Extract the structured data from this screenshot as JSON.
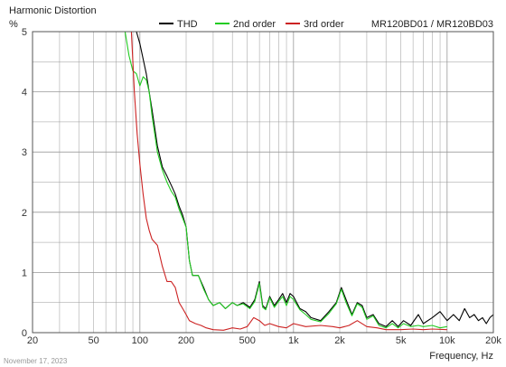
{
  "chart_data": {
    "type": "line",
    "title": "Harmonic Distortion",
    "ylabel": "%",
    "xlabel": "Frequency, Hz",
    "subtitle": "MR120BD01 / MR120BD03",
    "date": "November 17, 2023",
    "x_scale": "log",
    "xlim": [
      20,
      20000
    ],
    "ylim": [
      0,
      5
    ],
    "x_ticks": [
      20,
      50,
      100,
      200,
      500,
      1000,
      2000,
      5000,
      10000,
      20000
    ],
    "x_tick_labels": [
      "20",
      "50",
      "100",
      "200",
      "500",
      "1k",
      "2k",
      "5k",
      "10k",
      "20k"
    ],
    "y_ticks": [
      0,
      1,
      2,
      3,
      4,
      5
    ],
    "y_tick_labels": [
      "0",
      "1",
      "2",
      "3",
      "4",
      "5"
    ],
    "grid": true,
    "legend_placement": "top",
    "series": [
      {
        "name": "THD",
        "color": "#000000",
        "points": [
          [
            88,
            5.0
          ],
          [
            95,
            5.0
          ],
          [
            100,
            4.8
          ],
          [
            110,
            4.3
          ],
          [
            120,
            3.7
          ],
          [
            130,
            3.1
          ],
          [
            140,
            2.75
          ],
          [
            150,
            2.6
          ],
          [
            160,
            2.45
          ],
          [
            170,
            2.3
          ],
          [
            180,
            2.1
          ],
          [
            190,
            1.95
          ],
          [
            200,
            1.75
          ],
          [
            210,
            1.2
          ],
          [
            220,
            0.95
          ],
          [
            240,
            0.95
          ],
          [
            260,
            0.75
          ],
          [
            280,
            0.55
          ],
          [
            300,
            0.45
          ],
          [
            330,
            0.5
          ],
          [
            360,
            0.4
          ],
          [
            400,
            0.5
          ],
          [
            430,
            0.45
          ],
          [
            470,
            0.5
          ],
          [
            520,
            0.42
          ],
          [
            560,
            0.55
          ],
          [
            600,
            0.85
          ],
          [
            630,
            0.45
          ],
          [
            660,
            0.4
          ],
          [
            700,
            0.6
          ],
          [
            750,
            0.45
          ],
          [
            800,
            0.55
          ],
          [
            850,
            0.65
          ],
          [
            900,
            0.5
          ],
          [
            950,
            0.65
          ],
          [
            1000,
            0.6
          ],
          [
            1100,
            0.4
          ],
          [
            1200,
            0.35
          ],
          [
            1300,
            0.25
          ],
          [
            1500,
            0.2
          ],
          [
            1700,
            0.35
          ],
          [
            1900,
            0.5
          ],
          [
            2050,
            0.75
          ],
          [
            2200,
            0.55
          ],
          [
            2400,
            0.3
          ],
          [
            2600,
            0.5
          ],
          [
            2800,
            0.45
          ],
          [
            3000,
            0.25
          ],
          [
            3300,
            0.3
          ],
          [
            3600,
            0.15
          ],
          [
            4000,
            0.1
          ],
          [
            4400,
            0.2
          ],
          [
            4800,
            0.1
          ],
          [
            5200,
            0.2
          ],
          [
            5800,
            0.12
          ],
          [
            6500,
            0.3
          ],
          [
            7000,
            0.15
          ],
          [
            8000,
            0.25
          ],
          [
            9000,
            0.35
          ],
          [
            10000,
            0.2
          ],
          [
            11000,
            0.3
          ],
          [
            12000,
            0.2
          ],
          [
            13000,
            0.4
          ],
          [
            14000,
            0.25
          ],
          [
            15000,
            0.3
          ],
          [
            16000,
            0.2
          ],
          [
            17000,
            0.25
          ],
          [
            18000,
            0.15
          ],
          [
            19000,
            0.25
          ],
          [
            20000,
            0.3
          ]
        ]
      },
      {
        "name": "2nd order",
        "color": "#22cc22",
        "points": [
          [
            80,
            5.0
          ],
          [
            85,
            4.6
          ],
          [
            90,
            4.35
          ],
          [
            95,
            4.3
          ],
          [
            100,
            4.1
          ],
          [
            105,
            4.25
          ],
          [
            110,
            4.2
          ],
          [
            115,
            4.0
          ],
          [
            120,
            3.6
          ],
          [
            130,
            3.0
          ],
          [
            140,
            2.7
          ],
          [
            150,
            2.5
          ],
          [
            160,
            2.35
          ],
          [
            170,
            2.25
          ],
          [
            180,
            2.05
          ],
          [
            190,
            1.9
          ],
          [
            200,
            1.75
          ],
          [
            210,
            1.2
          ],
          [
            220,
            0.95
          ],
          [
            240,
            0.95
          ],
          [
            260,
            0.72
          ],
          [
            280,
            0.55
          ],
          [
            300,
            0.45
          ],
          [
            330,
            0.5
          ],
          [
            360,
            0.4
          ],
          [
            400,
            0.5
          ],
          [
            430,
            0.45
          ],
          [
            470,
            0.48
          ],
          [
            520,
            0.4
          ],
          [
            560,
            0.52
          ],
          [
            600,
            0.82
          ],
          [
            630,
            0.42
          ],
          [
            660,
            0.38
          ],
          [
            700,
            0.58
          ],
          [
            750,
            0.42
          ],
          [
            800,
            0.52
          ],
          [
            850,
            0.6
          ],
          [
            900,
            0.45
          ],
          [
            950,
            0.6
          ],
          [
            1000,
            0.55
          ],
          [
            1100,
            0.38
          ],
          [
            1200,
            0.3
          ],
          [
            1300,
            0.22
          ],
          [
            1500,
            0.18
          ],
          [
            1700,
            0.32
          ],
          [
            1900,
            0.48
          ],
          [
            2050,
            0.72
          ],
          [
            2200,
            0.5
          ],
          [
            2400,
            0.28
          ],
          [
            2600,
            0.48
          ],
          [
            2800,
            0.42
          ],
          [
            3000,
            0.22
          ],
          [
            3300,
            0.28
          ],
          [
            3600,
            0.12
          ],
          [
            4000,
            0.08
          ],
          [
            4400,
            0.15
          ],
          [
            4800,
            0.08
          ],
          [
            5200,
            0.15
          ],
          [
            5800,
            0.1
          ],
          [
            6500,
            0.12
          ],
          [
            7000,
            0.1
          ],
          [
            8000,
            0.12
          ],
          [
            9000,
            0.08
          ],
          [
            10000,
            0.1
          ]
        ]
      },
      {
        "name": "3rd order",
        "color": "#cc2222",
        "points": [
          [
            88,
            5.0
          ],
          [
            92,
            4.0
          ],
          [
            96,
            3.3
          ],
          [
            100,
            2.8
          ],
          [
            105,
            2.3
          ],
          [
            110,
            1.9
          ],
          [
            115,
            1.7
          ],
          [
            120,
            1.55
          ],
          [
            130,
            1.45
          ],
          [
            140,
            1.1
          ],
          [
            150,
            0.85
          ],
          [
            160,
            0.85
          ],
          [
            170,
            0.75
          ],
          [
            180,
            0.5
          ],
          [
            190,
            0.4
          ],
          [
            200,
            0.3
          ],
          [
            210,
            0.2
          ],
          [
            230,
            0.15
          ],
          [
            250,
            0.12
          ],
          [
            270,
            0.08
          ],
          [
            300,
            0.05
          ],
          [
            350,
            0.04
          ],
          [
            400,
            0.08
          ],
          [
            450,
            0.06
          ],
          [
            500,
            0.1
          ],
          [
            550,
            0.25
          ],
          [
            600,
            0.2
          ],
          [
            650,
            0.12
          ],
          [
            700,
            0.15
          ],
          [
            800,
            0.1
          ],
          [
            900,
            0.08
          ],
          [
            1000,
            0.15
          ],
          [
            1200,
            0.1
          ],
          [
            1500,
            0.12
          ],
          [
            1800,
            0.1
          ],
          [
            2000,
            0.08
          ],
          [
            2300,
            0.12
          ],
          [
            2600,
            0.2
          ],
          [
            3000,
            0.1
          ],
          [
            3500,
            0.08
          ],
          [
            4000,
            0.05
          ],
          [
            5000,
            0.05
          ],
          [
            6000,
            0.06
          ],
          [
            7000,
            0.05
          ],
          [
            8000,
            0.06
          ],
          [
            10000,
            0.05
          ]
        ]
      }
    ]
  }
}
